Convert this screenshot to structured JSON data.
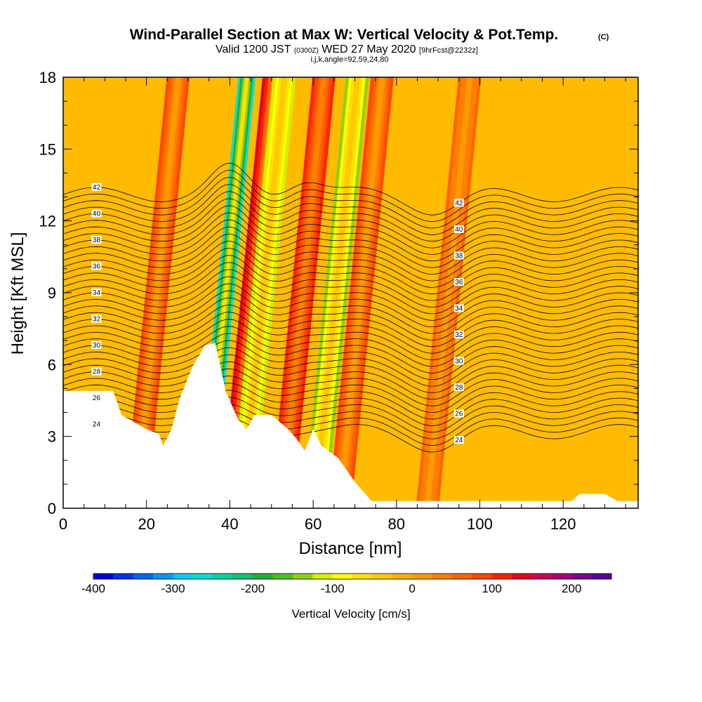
{
  "chart_data": {
    "type": "heatmap",
    "title": "Wind-Parallel Section at Max W: Vertical Velocity & Pot.Temp.",
    "title_mark": "(C)",
    "subtitle_valid": "Valid 1200 JST",
    "subtitle_utc": "(0300Z)",
    "subtitle_date": "WED 27 May 2020",
    "subtitle_fcst": "[9hrFcst@2232z]",
    "subtitle_params": "i,j,k,angle=92,59,24,80",
    "xlabel": "Distance [nm]",
    "ylabel": "Height [Kft MSL]",
    "xlim": [
      0,
      138
    ],
    "ylim": [
      0,
      18
    ],
    "x_ticks": [
      "0",
      "20",
      "40",
      "60",
      "80",
      "100",
      "120"
    ],
    "y_ticks": [
      "0",
      "3",
      "6",
      "9",
      "12",
      "15",
      "18"
    ],
    "colorbar": {
      "label": "Vertical Velocity [cm/s]",
      "range": [
        -400,
        250
      ],
      "ticks": [
        "-400",
        "-300",
        "-200",
        "-100",
        "0",
        "100",
        "200"
      ],
      "colors": [
        "#0000e0",
        "#0033ee",
        "#0066f0",
        "#0099f5",
        "#00ccff",
        "#00e0d0",
        "#00d49a",
        "#10c070",
        "#20b03a",
        "#50c020",
        "#90d010",
        "#d0f000",
        "#ffff00",
        "#ffe000",
        "#ffc800",
        "#ffb000",
        "#ff9a00",
        "#ff8000",
        "#ff6400",
        "#ff4800",
        "#ff2000",
        "#e80020",
        "#cc0050",
        "#a80078",
        "#800090",
        "#5a00a0"
      ]
    },
    "velocity_features_cm_s": [
      {
        "x": 37.5,
        "value": -260,
        "note": "strong downdraft band"
      },
      {
        "x": 44,
        "value": 140,
        "note": "strong updraft band"
      },
      {
        "x": 46.5,
        "value": -110
      },
      {
        "x": 56,
        "value": 120
      },
      {
        "x": 64,
        "value": -130
      },
      {
        "x": 70,
        "value": 90
      },
      {
        "x": 21,
        "value": 75
      },
      {
        "x": 91,
        "value": 60
      }
    ],
    "pot_temp_contour_labels": [
      "24",
      "26",
      "28",
      "30",
      "32",
      "34",
      "36",
      "38",
      "40",
      "42"
    ],
    "terrain_top_kft": [
      [
        0,
        4.9
      ],
      [
        12,
        4.9
      ],
      [
        14,
        3.9
      ],
      [
        17,
        3.6
      ],
      [
        20,
        3.3
      ],
      [
        23,
        3.1
      ],
      [
        24,
        2.6
      ],
      [
        26,
        3.3
      ],
      [
        28,
        4.6
      ],
      [
        31,
        5.9
      ],
      [
        34,
        6.8
      ],
      [
        36.5,
        6.9
      ],
      [
        39,
        4.9
      ],
      [
        42,
        3.7
      ],
      [
        44,
        3.3
      ],
      [
        46,
        3.9
      ],
      [
        50,
        3.9
      ],
      [
        54,
        3.3
      ],
      [
        56,
        2.9
      ],
      [
        58,
        2.4
      ],
      [
        60,
        3.3
      ],
      [
        62,
        2.6
      ],
      [
        66,
        2.1
      ],
      [
        70,
        1.1
      ],
      [
        74,
        0.3
      ],
      [
        122,
        0.3
      ],
      [
        124,
        0.6
      ],
      [
        130,
        0.6
      ],
      [
        133,
        0.3
      ],
      [
        138,
        0.3
      ]
    ]
  }
}
